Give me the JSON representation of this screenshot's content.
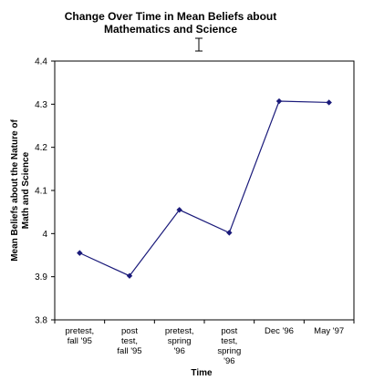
{
  "chart_data": {
    "type": "line",
    "title": [
      "Change Over Time in Mean Beliefs about",
      "Mathematics and Science"
    ],
    "xlabel": "Time",
    "ylabel": [
      "Mean Beliefs about the Nature of",
      "Math and Science"
    ],
    "categories": [
      [
        "pretest,",
        "fall '95"
      ],
      [
        "post",
        "test,",
        "fall '95"
      ],
      [
        "pretest,",
        "spring",
        "'96"
      ],
      [
        "post",
        "test,",
        "spring",
        "'96"
      ],
      [
        "Dec '96"
      ],
      [
        "May '97"
      ]
    ],
    "values": [
      3.955,
      3.902,
      4.055,
      4.002,
      4.307,
      4.304
    ],
    "ylim": [
      3.8,
      4.4
    ],
    "yticks": [
      "3.8",
      "3.9",
      "4",
      "4.1",
      "4.2",
      "4.3",
      "4.4"
    ],
    "grid": false,
    "series_color": "#1a1a7a",
    "axis_color": "#000000"
  }
}
